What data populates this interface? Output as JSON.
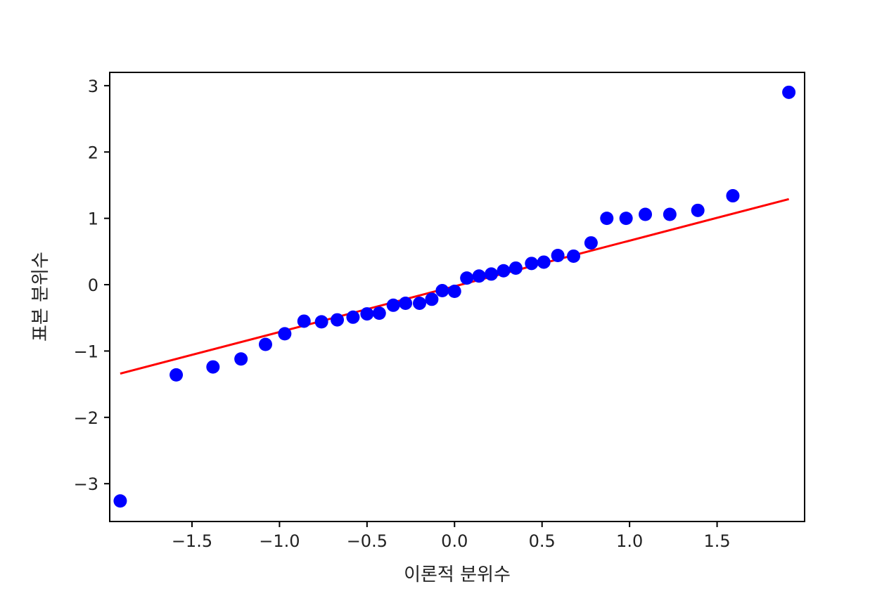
{
  "chart_data": {
    "type": "scatter",
    "title": "",
    "xlabel": "이론적 분위수",
    "ylabel": "표본 분위수",
    "xlim": [
      -1.97,
      2.0
    ],
    "ylim": [
      -3.57,
      3.2
    ],
    "xticks": [
      -1.5,
      -1.0,
      -0.5,
      0.0,
      0.5,
      1.0,
      1.5
    ],
    "xtick_labels": [
      "−1.5",
      "−1.0",
      "−0.5",
      "0.0",
      "0.5",
      "1.0",
      "1.5"
    ],
    "yticks": [
      -3,
      -2,
      -1,
      0,
      1,
      2,
      3
    ],
    "ytick_labels": [
      "−3",
      "−2",
      "−1",
      "0",
      "1",
      "2",
      "3"
    ],
    "grid": false,
    "points_color": "#0000ff",
    "line_color": "#ff0000",
    "points": [
      {
        "x": -1.91,
        "y": -3.26
      },
      {
        "x": -1.59,
        "y": -1.36
      },
      {
        "x": -1.38,
        "y": -1.24
      },
      {
        "x": -1.22,
        "y": -1.12
      },
      {
        "x": -1.08,
        "y": -0.9
      },
      {
        "x": -0.97,
        "y": -0.74
      },
      {
        "x": -0.86,
        "y": -0.55
      },
      {
        "x": -0.76,
        "y": -0.56
      },
      {
        "x": -0.67,
        "y": -0.53
      },
      {
        "x": -0.58,
        "y": -0.49
      },
      {
        "x": -0.5,
        "y": -0.44
      },
      {
        "x": -0.43,
        "y": -0.43
      },
      {
        "x": -0.35,
        "y": -0.31
      },
      {
        "x": -0.28,
        "y": -0.28
      },
      {
        "x": -0.2,
        "y": -0.28
      },
      {
        "x": -0.13,
        "y": -0.22
      },
      {
        "x": -0.07,
        "y": -0.09
      },
      {
        "x": 0.0,
        "y": -0.1
      },
      {
        "x": 0.07,
        "y": 0.1
      },
      {
        "x": 0.14,
        "y": 0.13
      },
      {
        "x": 0.21,
        "y": 0.16
      },
      {
        "x": 0.28,
        "y": 0.21
      },
      {
        "x": 0.35,
        "y": 0.25
      },
      {
        "x": 0.44,
        "y": 0.32
      },
      {
        "x": 0.51,
        "y": 0.34
      },
      {
        "x": 0.59,
        "y": 0.44
      },
      {
        "x": 0.68,
        "y": 0.43
      },
      {
        "x": 0.78,
        "y": 0.63
      },
      {
        "x": 0.87,
        "y": 1.0
      },
      {
        "x": 0.98,
        "y": 1.0
      },
      {
        "x": 1.09,
        "y": 1.06
      },
      {
        "x": 1.23,
        "y": 1.06
      },
      {
        "x": 1.39,
        "y": 1.12
      },
      {
        "x": 1.59,
        "y": 1.34
      },
      {
        "x": 1.91,
        "y": 2.9
      }
    ],
    "fit_line": {
      "x": [
        -1.91,
        1.91
      ],
      "y": [
        -1.34,
        1.29
      ]
    }
  }
}
